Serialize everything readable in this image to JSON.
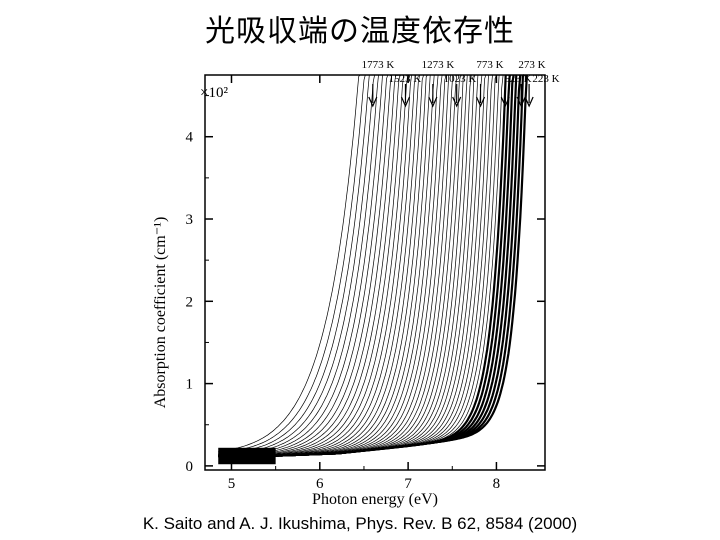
{
  "page": {
    "title": "光吸収端の温度依存性",
    "citation": "K. Saito and A. J. Ikushima, Phys. Rev. B 62, 8584 (2000)"
  },
  "chart_data": {
    "type": "line",
    "xlabel": "Photon energy (eV)",
    "ylabel": "Absorption coefficient (cm⁻¹)",
    "y_multiplier_label": "×10²",
    "xlim": [
      4.7,
      8.55
    ],
    "ylim": [
      -0.05,
      4.75
    ],
    "x_ticks": [
      5,
      6,
      7,
      8
    ],
    "y_ticks": [
      0,
      1,
      2,
      3,
      4
    ],
    "baseline_y": 0.12,
    "n_curves": 45,
    "edge_x_range": [
      6.45,
      8.35
    ],
    "temperature_labels_top": [
      "1773 K",
      "1273 K",
      "773 K",
      "273 K"
    ],
    "temperature_labels_bottom": [
      "1523 K",
      "1023 K",
      "523 K",
      "223 K"
    ],
    "arrows": [
      {
        "label": "1773 K",
        "x": 6.6
      },
      {
        "label": "1523 K",
        "x": 6.97
      },
      {
        "label": "1273 K",
        "x": 7.28
      },
      {
        "label": "1023 K",
        "x": 7.55
      },
      {
        "label": "773 K",
        "x": 7.82
      },
      {
        "label": "523 K",
        "x": 8.1
      },
      {
        "label": "273 K",
        "x": 8.28
      },
      {
        "label": "223 K",
        "x": 8.37
      }
    ]
  }
}
